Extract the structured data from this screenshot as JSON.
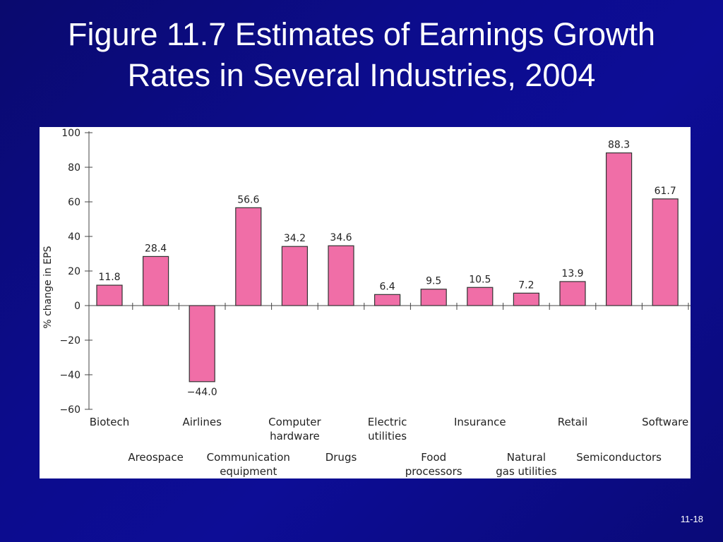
{
  "slide": {
    "title_line1": "Figure 11.7 Estimates of Earnings Growth",
    "title_line2": "Rates in Several Industries, 2004",
    "page_number": "11-18"
  },
  "colors": {
    "background": "#0c0c8c",
    "bar_fill": "#f06ea7",
    "bar_stroke": "#333333"
  },
  "chart_data": {
    "type": "bar",
    "title": "",
    "xlabel": "",
    "ylabel": "% change in EPS",
    "ylim": [
      -60,
      100
    ],
    "yticks": [
      100,
      80,
      60,
      40,
      20,
      0,
      -20,
      -40,
      -60
    ],
    "ytick_labels": [
      "100",
      "80",
      "60",
      "40",
      "20",
      "0",
      "−20",
      "−40",
      "−60"
    ],
    "grid": false,
    "legend": "none",
    "categories": [
      [
        "Biotech"
      ],
      [
        "Areospace"
      ],
      [
        "Airlines"
      ],
      [
        "Communication",
        "equipment"
      ],
      [
        "Computer",
        "hardware"
      ],
      [
        "Drugs"
      ],
      [
        "Electric",
        "utilities"
      ],
      [
        "Food",
        "processors"
      ],
      [
        "Insurance"
      ],
      [
        "Natural",
        "gas utilities"
      ],
      [
        "Retail"
      ],
      [
        "Semiconductors"
      ],
      [
        "Software"
      ]
    ],
    "values": [
      11.8,
      28.4,
      -44.0,
      56.6,
      34.2,
      34.6,
      6.4,
      9.5,
      10.5,
      7.2,
      13.9,
      88.3,
      61.7
    ],
    "value_labels": [
      "11.8",
      "28.4",
      "−44.0",
      "56.6",
      "34.2",
      "34.6",
      "6.4",
      "9.5",
      "10.5",
      "7.2",
      "13.9",
      "88.3",
      "61.7"
    ]
  }
}
